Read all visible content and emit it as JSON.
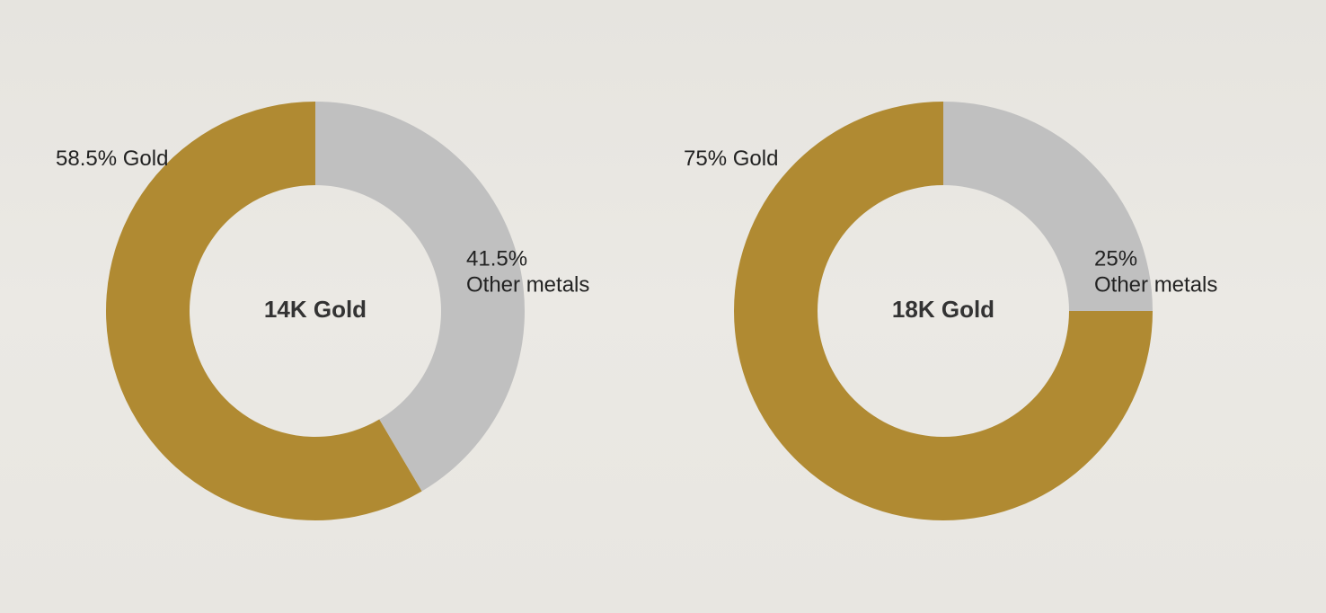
{
  "chart_data": [
    {
      "type": "pie",
      "title": "14K Gold",
      "categories": [
        "Gold",
        "Other metals"
      ],
      "values": [
        58.5,
        41.5
      ],
      "value_labels": [
        "58.5%",
        "41.5%"
      ],
      "colors": [
        "#b08a32",
        "#c0c0c0"
      ]
    },
    {
      "type": "pie",
      "title": "18K Gold",
      "categories": [
        "Gold",
        "Other metals"
      ],
      "values": [
        75,
        25
      ],
      "value_labels": [
        "75%",
        "25%"
      ],
      "colors": [
        "#b08a32",
        "#c0c0c0"
      ]
    }
  ]
}
